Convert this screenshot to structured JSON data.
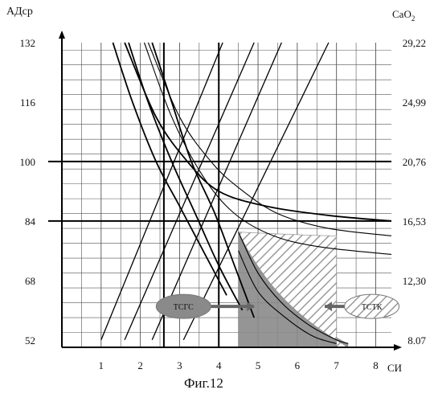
{
  "chart_data": {
    "type": "line",
    "title": "",
    "caption": "Фиг.12",
    "ylabel_left": "АДср",
    "ylabel_right": "CaO",
    "ylabel_right_sub": "2",
    "xlabel": "СИ",
    "x_ticks": [
      "1",
      "2",
      "3",
      "4",
      "5",
      "6",
      "7",
      "8"
    ],
    "y_ticks_left": [
      "132",
      "116",
      "100",
      "84",
      "68",
      "52"
    ],
    "y_ticks_right": [
      "29,22",
      "24,99",
      "20,76",
      "16,53",
      "12,30",
      "8.07"
    ],
    "xlim": [
      0,
      8.4
    ],
    "ylim": [
      50,
      132
    ],
    "grid": true,
    "reference_lines": {
      "horizontal": [
        100,
        84
      ],
      "vertical": [
        2.6,
        4
      ]
    },
    "curves": [
      {
        "x": [
          1.3,
          1.8,
          2.4,
          3.0,
          3.6,
          4.2
        ],
        "y": [
          132,
          116,
          100,
          88,
          76,
          64
        ]
      },
      {
        "x": [
          1.7,
          2.2,
          2.8,
          3.4,
          4.0,
          4.6
        ],
        "y": [
          132,
          116,
          100,
          86,
          72,
          60
        ]
      },
      {
        "x": [
          2.3,
          2.8,
          3.3,
          3.9,
          4.4,
          4.9
        ],
        "y": [
          132,
          116,
          100,
          86,
          72,
          58
        ]
      },
      {
        "x": [
          1.6,
          2.4,
          3.2,
          4.0,
          5.2,
          6.8,
          8.4
        ],
        "y": [
          132,
          112,
          100,
          92,
          88,
          85.5,
          84
        ]
      },
      {
        "x": [
          2.2,
          3.0,
          3.8,
          4.5,
          5.5,
          6.8,
          8.4
        ],
        "y": [
          132,
          112,
          100,
          93,
          86,
          82,
          80
        ]
      },
      {
        "x": [
          2.1,
          2.8,
          3.6,
          4.4,
          5.4,
          6.6,
          8.4
        ],
        "y": [
          132,
          112,
          96,
          86,
          80,
          77,
          75
        ]
      },
      {
        "x": [
          4.5,
          5.0,
          5.6,
          6.3,
          7.0,
          7.3
        ],
        "y": [
          81,
          70,
          62,
          56,
          52,
          51
        ]
      },
      {
        "x": [
          4.5,
          5.0,
          5.7,
          6.4,
          7.0
        ],
        "y": [
          76,
          65,
          58,
          53,
          51
        ]
      }
    ],
    "straight_lines": [
      {
        "x": [
          1.0,
          4.1
        ],
        "y": [
          52,
          132
        ]
      },
      {
        "x": [
          1.6,
          4.9
        ],
        "y": [
          52,
          132
        ]
      },
      {
        "x": [
          2.3,
          5.6
        ],
        "y": [
          52,
          132
        ]
      },
      {
        "x": [
          3.1,
          6.8
        ],
        "y": [
          52,
          132
        ]
      }
    ],
    "regions": [
      {
        "label": "ТСГС",
        "color": "#888888",
        "label_x": 3.1,
        "label_y": 61,
        "arrow_to_x": 4.9
      },
      {
        "label": "ТСТК",
        "color": "#b5b5b5",
        "label_x": 7.9,
        "label_y": 61,
        "arrow_to_x": 6.7
      }
    ]
  }
}
